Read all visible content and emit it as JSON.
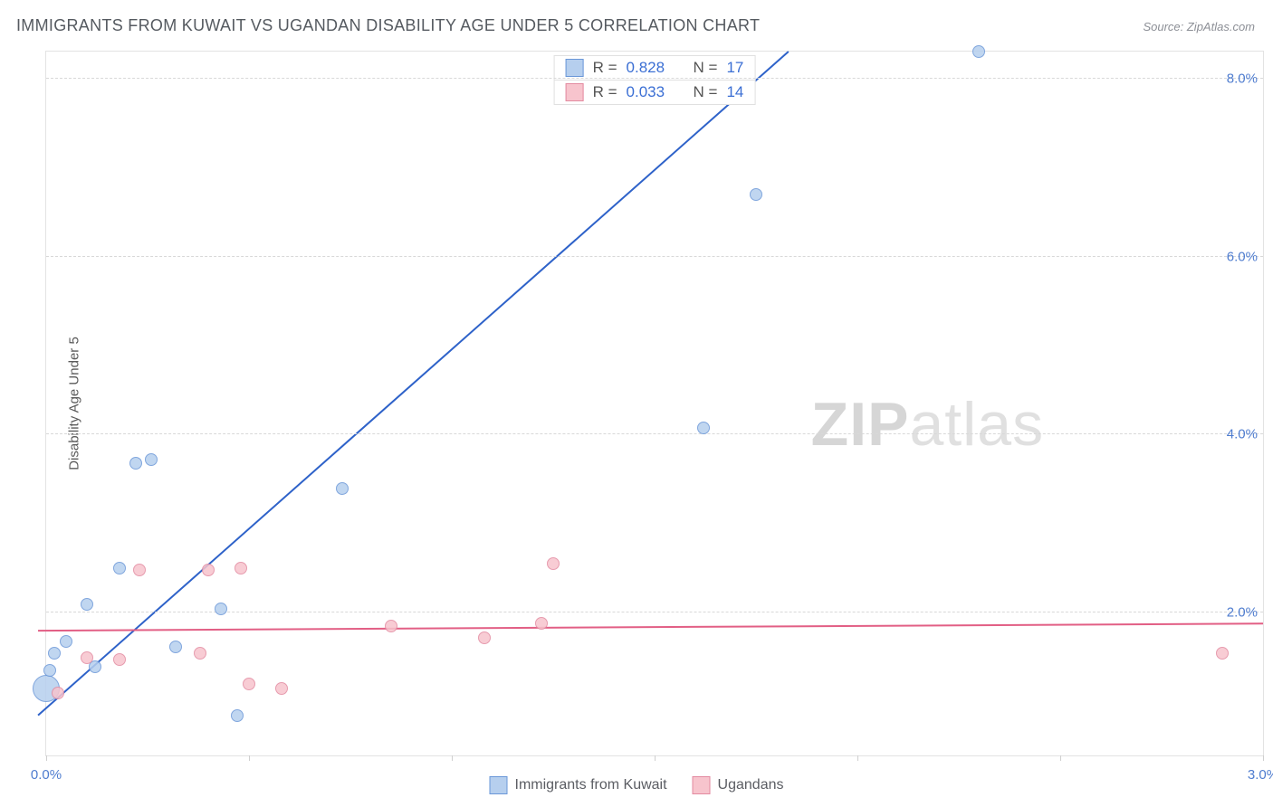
{
  "title": "IMMIGRANTS FROM KUWAIT VS UGANDAN DISABILITY AGE UNDER 5 CORRELATION CHART",
  "source": "Source: ZipAtlas.com",
  "ylabel": "Disability Age Under 5",
  "watermark_left": "ZIP",
  "watermark_right": "atlas",
  "chart": {
    "type": "scatter",
    "background_color": "#ffffff",
    "grid_color": "#d8d8d8",
    "border_color": "#e3e3e3",
    "xlim": [
      0.0,
      3.0
    ],
    "ylim": [
      0.4,
      8.3
    ],
    "x_ticks": [
      0.0,
      0.5,
      1.0,
      1.5,
      2.0,
      2.5,
      3.0
    ],
    "x_tick_labels": [
      "0.0%",
      "",
      "",
      "",
      "",
      "",
      "3.0%"
    ],
    "y_gridlines": [
      2.0,
      4.0,
      6.0,
      8.0
    ],
    "y_tick_labels": [
      "2.0%",
      "4.0%",
      "6.0%",
      "8.0%"
    ],
    "series": [
      {
        "name": "Immigrants from Kuwait",
        "label": "Immigrants from Kuwait",
        "color_fill": "#b6cfee",
        "color_stroke": "#6a97d8",
        "marker_size": 14,
        "r": "0.828",
        "n": "17",
        "trend": {
          "color": "#2e62c9",
          "width": 2,
          "x1": -0.02,
          "y1": 0.85,
          "x2": 1.83,
          "y2": 8.3
        },
        "points": [
          {
            "x": 0.0,
            "y": 1.15,
            "size": 30
          },
          {
            "x": 0.01,
            "y": 1.35
          },
          {
            "x": 0.02,
            "y": 1.55
          },
          {
            "x": 0.05,
            "y": 1.68
          },
          {
            "x": 0.1,
            "y": 2.1
          },
          {
            "x": 0.12,
            "y": 1.4
          },
          {
            "x": 0.18,
            "y": 2.5
          },
          {
            "x": 0.22,
            "y": 3.68
          },
          {
            "x": 0.26,
            "y": 3.72
          },
          {
            "x": 0.32,
            "y": 1.62
          },
          {
            "x": 0.43,
            "y": 2.05
          },
          {
            "x": 0.47,
            "y": 0.85
          },
          {
            "x": 0.73,
            "y": 3.4
          },
          {
            "x": 1.62,
            "y": 4.08
          },
          {
            "x": 1.75,
            "y": 6.7
          },
          {
            "x": 2.3,
            "y": 8.3
          }
        ]
      },
      {
        "name": "Ugandans",
        "label": "Ugandans",
        "color_fill": "#f7c4cd",
        "color_stroke": "#e38aa0",
        "marker_size": 14,
        "r": "0.033",
        "n": "14",
        "trend": {
          "color": "#e25f85",
          "width": 2,
          "x1": -0.02,
          "y1": 1.8,
          "x2": 3.0,
          "y2": 1.88
        },
        "points": [
          {
            "x": 0.03,
            "y": 1.1
          },
          {
            "x": 0.1,
            "y": 1.5
          },
          {
            "x": 0.18,
            "y": 1.48
          },
          {
            "x": 0.23,
            "y": 2.48
          },
          {
            "x": 0.38,
            "y": 1.55
          },
          {
            "x": 0.4,
            "y": 2.48
          },
          {
            "x": 0.48,
            "y": 2.5
          },
          {
            "x": 0.5,
            "y": 1.2
          },
          {
            "x": 0.58,
            "y": 1.15
          },
          {
            "x": 0.85,
            "y": 1.85
          },
          {
            "x": 1.08,
            "y": 1.72
          },
          {
            "x": 1.22,
            "y": 1.88
          },
          {
            "x": 1.25,
            "y": 2.55
          },
          {
            "x": 2.9,
            "y": 1.55
          }
        ]
      }
    ]
  },
  "legend_top_labels": {
    "r": "R =",
    "n": "N ="
  },
  "tick_color": "#4e7ccf",
  "axis_label_color": "#5a5a5a",
  "title_fontsize": 18,
  "label_fontsize": 15
}
